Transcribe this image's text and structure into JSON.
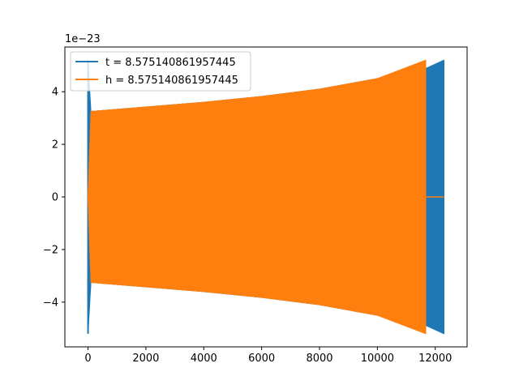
{
  "chart_data": {
    "type": "line",
    "title": "",
    "xlabel": "",
    "ylabel": "",
    "y_offset_text": "1e−23",
    "xlim": [
      -800,
      13100
    ],
    "ylim": [
      -5.7,
      5.7
    ],
    "xticks": [
      0,
      2000,
      4000,
      6000,
      8000,
      10000,
      12000
    ],
    "xtick_labels": [
      "0",
      "2000",
      "4000",
      "6000",
      "8000",
      "10000",
      "12000"
    ],
    "yticks": [
      -4,
      -2,
      0,
      2,
      4
    ],
    "ytick_labels": [
      "−4",
      "−2",
      "0",
      "2",
      "4"
    ],
    "grid": false,
    "legend_position": "upper-left",
    "series": [
      {
        "name": "t = 8.575140861957445",
        "color": "#1f77b4",
        "x_start": 0,
        "x_end": 12300,
        "envelope": [
          {
            "x": 0,
            "amp": 5.2
          },
          {
            "x": 100,
            "amp": 3.25
          },
          {
            "x": 2000,
            "amp": 3.42
          },
          {
            "x": 4000,
            "amp": 3.6
          },
          {
            "x": 6000,
            "amp": 3.82
          },
          {
            "x": 8000,
            "amp": 4.1
          },
          {
            "x": 10000,
            "amp": 4.5
          },
          {
            "x": 11700,
            "amp": 4.9
          },
          {
            "x": 12300,
            "amp": 5.2
          }
        ]
      },
      {
        "name": "h = 8.575140861957445",
        "color": "#ff7f0e",
        "x_start": 0,
        "x_end": 11670,
        "tail_end": 12300,
        "tail_value": 0,
        "envelope": [
          {
            "x": 0,
            "amp": 0
          },
          {
            "x": 100,
            "amp": 3.25
          },
          {
            "x": 2000,
            "amp": 3.42
          },
          {
            "x": 4000,
            "amp": 3.6
          },
          {
            "x": 6000,
            "amp": 3.82
          },
          {
            "x": 8000,
            "amp": 4.1
          },
          {
            "x": 10000,
            "amp": 4.5
          },
          {
            "x": 11670,
            "amp": 5.2
          }
        ]
      }
    ]
  }
}
